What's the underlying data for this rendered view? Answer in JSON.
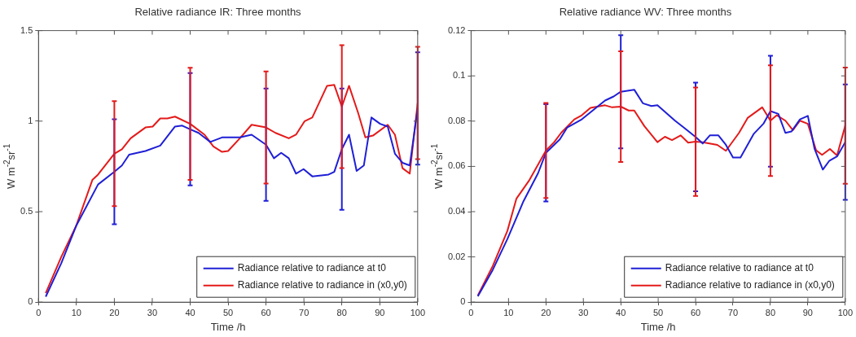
{
  "chart_data": [
    {
      "type": "line",
      "title": "Relative radiance IR: Three months",
      "xlabel": "Time /h",
      "ylabel": "W m$^{-2}$sr$^{-1}$",
      "xlim": [
        0,
        100
      ],
      "xticks": [
        0,
        10,
        20,
        30,
        40,
        50,
        60,
        70,
        80,
        90,
        100
      ],
      "ylim": [
        0,
        1.5
      ],
      "yticks": [
        0,
        0.5,
        1,
        1.5
      ],
      "grid": false,
      "legend": "bottom right",
      "marker": "none",
      "line_style": "solid",
      "series": [
        {
          "name": "Radiance relative to radiance at t0",
          "color": "#1f1fd6",
          "x": [
            1.9,
            6,
            9.9,
            15.7,
            20,
            22,
            23.9,
            28.2,
            32.1,
            36,
            37.9,
            40,
            42.2,
            45.3,
            48.4,
            53.1,
            56.2,
            60,
            62.1,
            64,
            66,
            67.9,
            69.9,
            72.2,
            76.5,
            78,
            80,
            81.9,
            83.9,
            85.8,
            87.8,
            90.1,
            92.1,
            94,
            96,
            97.9,
            100
          ],
          "values": [
            0.03,
            0.215,
            0.42,
            0.65,
            0.72,
            0.755,
            0.815,
            0.835,
            0.865,
            0.97,
            0.975,
            0.955,
            0.935,
            0.885,
            0.91,
            0.91,
            0.925,
            0.87,
            0.795,
            0.825,
            0.795,
            0.71,
            0.735,
            0.695,
            0.705,
            0.72,
            0.845,
            0.925,
            0.725,
            0.755,
            1.02,
            0.985,
            0.97,
            0.82,
            0.77,
            0.755,
            1.07
          ],
          "errors": [
            null,
            null,
            null,
            null,
            0.29,
            null,
            null,
            null,
            null,
            null,
            null,
            0.31,
            null,
            null,
            null,
            null,
            null,
            0.31,
            null,
            null,
            null,
            null,
            null,
            null,
            null,
            null,
            0.335,
            null,
            null,
            null,
            null,
            null,
            null,
            null,
            null,
            null,
            0.31
          ]
        },
        {
          "name": "Radiance relative to radiance in (x0,y0)",
          "color": "#e41a1a",
          "x": [
            1.9,
            6,
            9.9,
            14.2,
            15.7,
            20,
            22,
            24.3,
            28.2,
            30.1,
            32.1,
            34,
            36,
            40,
            43.8,
            46.1,
            48.4,
            50,
            53.1,
            56.2,
            60,
            62.5,
            66,
            67.9,
            70.2,
            72.2,
            76.1,
            78,
            80,
            81.9,
            84.3,
            86.2,
            88.2,
            92.1,
            94,
            96,
            97.9,
            100
          ],
          "values": [
            0.05,
            0.25,
            0.42,
            0.675,
            0.705,
            0.82,
            0.845,
            0.905,
            0.965,
            0.97,
            1.015,
            1.015,
            1.025,
            0.985,
            0.925,
            0.86,
            0.83,
            0.835,
            0.905,
            0.98,
            0.965,
            0.935,
            0.905,
            0.925,
            1.0,
            1.02,
            1.195,
            1.2,
            1.08,
            1.195,
            1.045,
            0.91,
            0.92,
            0.98,
            0.925,
            0.74,
            0.71,
            1.1
          ],
          "errors": [
            null,
            null,
            null,
            null,
            null,
            0.29,
            null,
            null,
            null,
            null,
            null,
            null,
            null,
            0.31,
            null,
            null,
            null,
            null,
            null,
            null,
            0.31,
            null,
            null,
            null,
            null,
            null,
            null,
            null,
            0.34,
            null,
            null,
            null,
            null,
            null,
            null,
            null,
            null,
            0.31
          ]
        }
      ]
    },
    {
      "type": "line",
      "title": "Relative radiance WV: Three months",
      "xlabel": "Time /h",
      "ylabel": "W m$^{-2}$sr$^{-1}$",
      "xlim": [
        0,
        100
      ],
      "xticks": [
        0,
        10,
        20,
        30,
        40,
        50,
        60,
        70,
        80,
        90,
        100
      ],
      "ylim": [
        0,
        0.12
      ],
      "yticks": [
        0,
        0.02,
        0.04,
        0.06,
        0.08,
        0.1,
        0.12
      ],
      "grid": false,
      "legend": "bottom right",
      "marker": "none",
      "line_style": "solid",
      "series": [
        {
          "name": "Radiance relative to radiance at t0",
          "color": "#1f1fd6",
          "x": [
            1.8,
            5.8,
            9.7,
            14,
            17.9,
            20,
            23.7,
            25.7,
            29.6,
            32.7,
            35.8,
            38.1,
            40,
            43.6,
            45.9,
            48.2,
            49.8,
            54.5,
            56.8,
            60,
            61.9,
            63.8,
            66.1,
            68.1,
            70,
            72,
            75.5,
            78.2,
            80,
            82.1,
            84,
            85.6,
            87.9,
            90,
            91.8,
            94,
            95.7,
            97.8,
            100
          ],
          "values": [
            0.0026,
            0.0143,
            0.0279,
            0.0446,
            0.057,
            0.066,
            0.0719,
            0.0772,
            0.0808,
            0.085,
            0.0891,
            0.0909,
            0.093,
            0.0939,
            0.0879,
            0.0867,
            0.087,
            0.0802,
            0.0772,
            0.073,
            0.0701,
            0.0737,
            0.0737,
            0.0695,
            0.0639,
            0.0639,
            0.0743,
            0.079,
            0.0844,
            0.0832,
            0.0748,
            0.0754,
            0.0808,
            0.0823,
            0.0677,
            0.0586,
            0.0624,
            0.0644,
            0.0707
          ],
          "errors": [
            null,
            null,
            null,
            null,
            null,
            0.0215,
            null,
            null,
            null,
            null,
            null,
            null,
            0.025,
            null,
            null,
            null,
            null,
            null,
            null,
            0.024,
            null,
            null,
            null,
            null,
            null,
            null,
            null,
            null,
            0.0245,
            null,
            null,
            null,
            null,
            null,
            null,
            null,
            null,
            null,
            0.0255
          ]
        },
        {
          "name": "Radiance relative to radiance in (x0,y0)",
          "color": "#e41a1a",
          "x": [
            1.8,
            5.8,
            9.7,
            12.1,
            15.6,
            20,
            22.2,
            24.1,
            27.6,
            29.6,
            31.9,
            35.8,
            37.7,
            40,
            42.1,
            43.6,
            46.3,
            49.8,
            51.8,
            53.7,
            56,
            58,
            60,
            61.9,
            65.8,
            68.1,
            71.6,
            73.9,
            77.8,
            80,
            81.7,
            84,
            86,
            87.9,
            90,
            92.2,
            93.8,
            95.9,
            97.8,
            100
          ],
          "values": [
            0.003,
            0.016,
            0.0315,
            0.0457,
            0.054,
            0.067,
            0.0707,
            0.0749,
            0.0808,
            0.0826,
            0.0859,
            0.087,
            0.0861,
            0.0864,
            0.0847,
            0.0847,
            0.0778,
            0.0707,
            0.0731,
            0.0716,
            0.0737,
            0.0705,
            0.0709,
            0.0707,
            0.0695,
            0.0669,
            0.0748,
            0.0814,
            0.0861,
            0.0802,
            0.0826,
            0.0802,
            0.076,
            0.0802,
            0.0788,
            0.0671,
            0.0651,
            0.0677,
            0.0648,
            0.078
          ],
          "errors": [
            null,
            null,
            null,
            null,
            null,
            0.021,
            null,
            null,
            null,
            null,
            null,
            null,
            null,
            0.0245,
            null,
            null,
            null,
            null,
            null,
            null,
            null,
            null,
            0.024,
            null,
            null,
            null,
            null,
            null,
            null,
            0.0245,
            null,
            null,
            null,
            null,
            null,
            null,
            null,
            null,
            null,
            0.0257
          ]
        }
      ]
    }
  ]
}
